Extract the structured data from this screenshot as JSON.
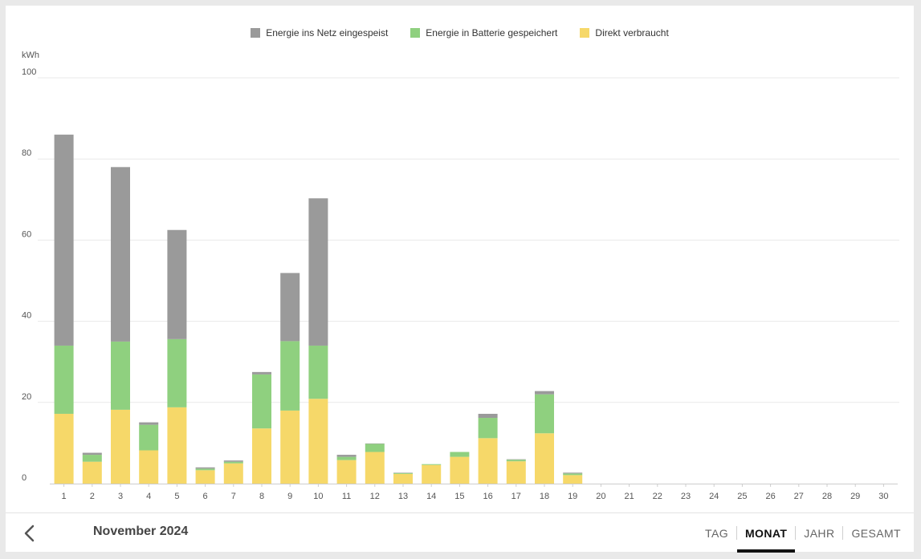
{
  "legend": [
    {
      "label": "Energie ins Netz eingespeist",
      "color": "#9a9a9a"
    },
    {
      "label": "Energie in Batterie gespeichert",
      "color": "#8fd07f"
    },
    {
      "label": "Direkt verbraucht",
      "color": "#f6d869"
    }
  ],
  "footer": {
    "period": "November 2024",
    "tabs": [
      {
        "label": "TAG",
        "active": false
      },
      {
        "label": "MONAT",
        "active": true
      },
      {
        "label": "JAHR",
        "active": false
      },
      {
        "label": "GESAMT",
        "active": false
      }
    ]
  },
  "chart_data": {
    "type": "bar",
    "stacked": true,
    "unit_label": "kWh",
    "ylim": [
      0,
      100
    ],
    "yticks": [
      0,
      20,
      40,
      60,
      80,
      100
    ],
    "grid": true,
    "legend_position": "top-center",
    "categories": [
      "1",
      "2",
      "3",
      "4",
      "5",
      "6",
      "7",
      "8",
      "9",
      "10",
      "11",
      "12",
      "13",
      "14",
      "15",
      "16",
      "17",
      "18",
      "19",
      "20",
      "21",
      "22",
      "23",
      "24",
      "25",
      "26",
      "27",
      "28",
      "29",
      "30"
    ],
    "series": [
      {
        "name": "Direkt verbraucht",
        "color": "#f6d869",
        "values": [
          17.2,
          5.4,
          18.2,
          8.2,
          18.8,
          3.3,
          5.0,
          13.6,
          18.0,
          20.9,
          5.8,
          7.8,
          2.4,
          4.6,
          6.6,
          11.2,
          5.5,
          12.4,
          2.1,
          0,
          0,
          0,
          0,
          0,
          0,
          0,
          0,
          0,
          0,
          0
        ]
      },
      {
        "name": "Energie in Batterie gespeichert",
        "color": "#8fd07f",
        "values": [
          16.8,
          1.7,
          16.8,
          6.3,
          16.8,
          0.4,
          0.4,
          13.3,
          17.1,
          13.1,
          0.8,
          2.0,
          0.2,
          0.2,
          1.2,
          5.0,
          0.4,
          9.6,
          0.4,
          0,
          0,
          0,
          0,
          0,
          0,
          0,
          0,
          0,
          0,
          0
        ]
      },
      {
        "name": "Energie ins Netz eingespeist",
        "color": "#9a9a9a",
        "values": [
          52.0,
          0.5,
          43.0,
          0.6,
          26.9,
          0.3,
          0.3,
          0.6,
          16.8,
          36.3,
          0.5,
          0.1,
          0.1,
          0,
          0,
          1.0,
          0.1,
          0.8,
          0.2,
          0,
          0,
          0,
          0,
          0,
          0,
          0,
          0,
          0,
          0,
          0
        ]
      }
    ]
  }
}
